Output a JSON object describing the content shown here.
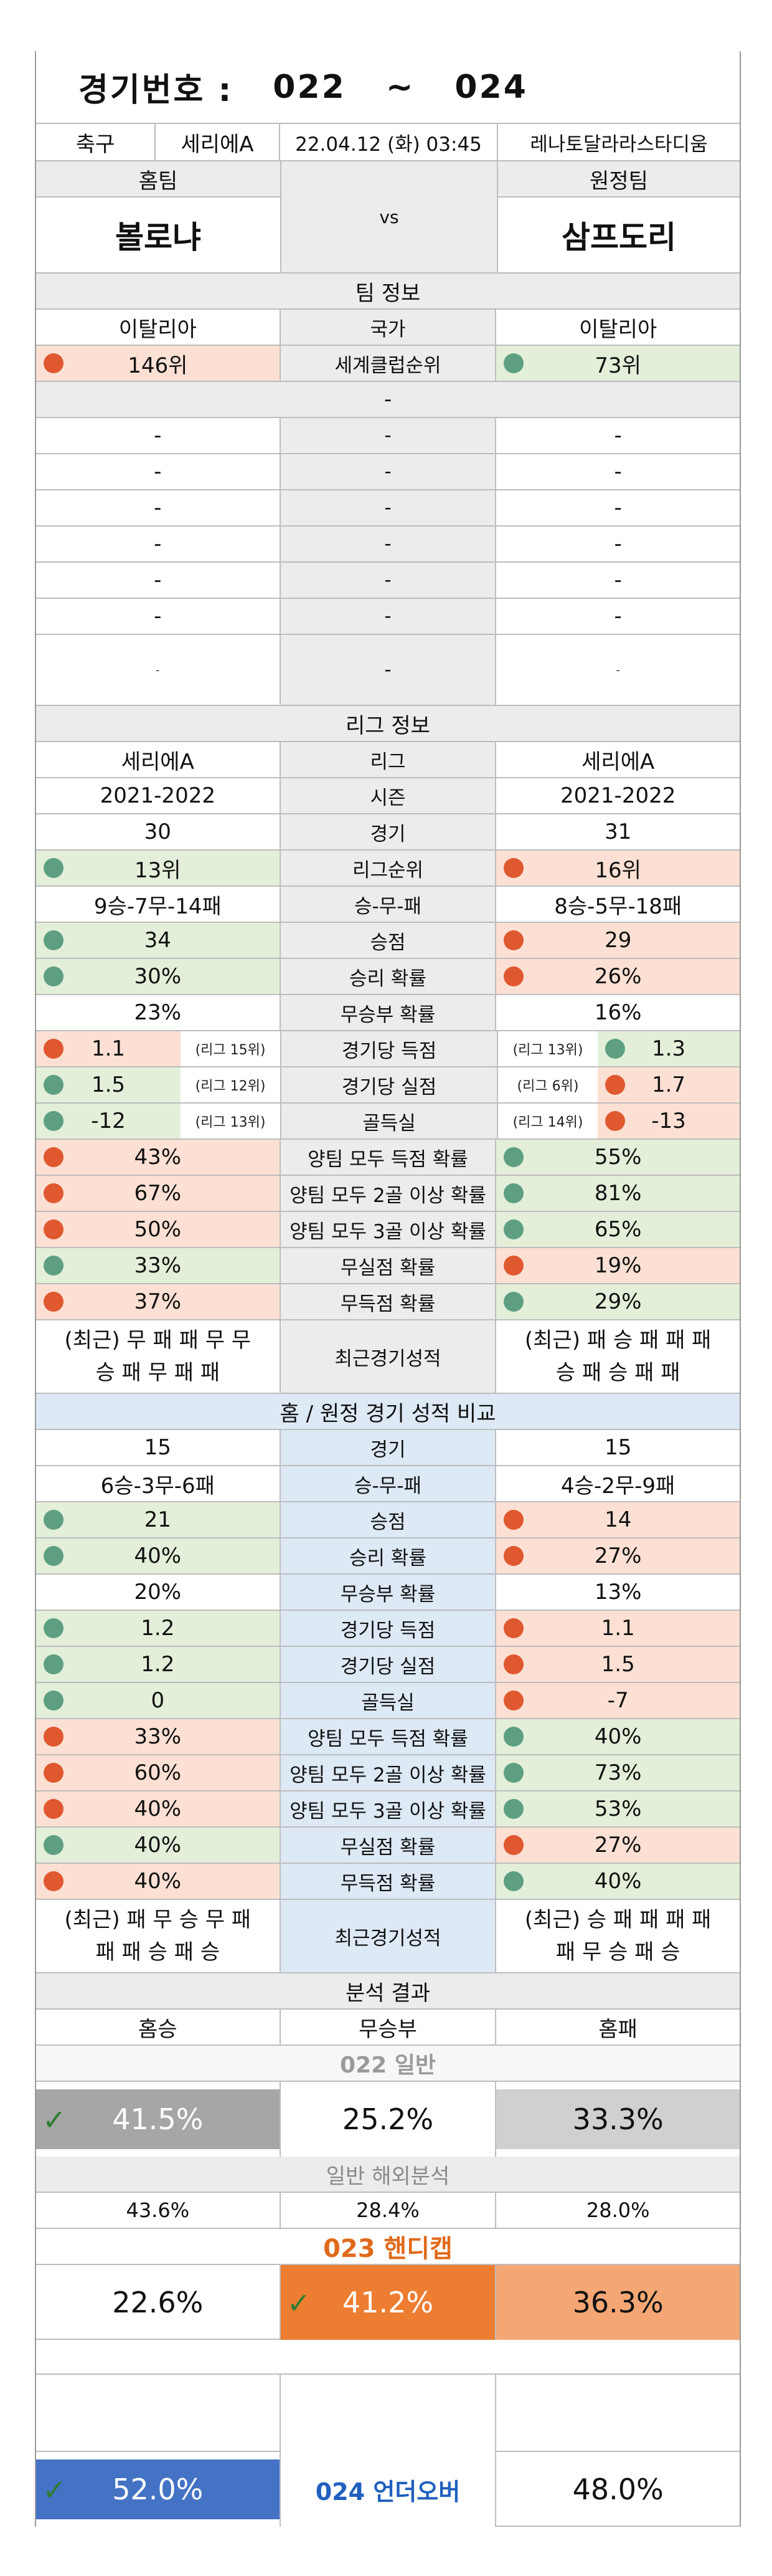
{
  "header": {
    "label": "경기번호 :",
    "from": "022",
    "tilde": "~",
    "to": "024"
  },
  "match": {
    "sport": "축구",
    "league": "세리에A",
    "datetime": "22.04.12 (화) 03:45",
    "stadium": "레나토달라라스타디움"
  },
  "teams": {
    "home_label": "홈팀",
    "away_label": "원정팀",
    "home": "볼로냐",
    "vs": "vs",
    "away": "삼프도리"
  },
  "team_info": {
    "title": "팀 정보",
    "country_home": "이탈리아",
    "country_label": "국가",
    "country_away": "이탈리아",
    "rank_home": "146위",
    "rank_label": "세계클럽순위",
    "rank_away": "73위",
    "blank_row": "-",
    "dash": "-"
  },
  "league_info": {
    "title": "리그 정보",
    "rows": [
      {
        "home": "세리에A",
        "label": "리그",
        "away": "세리에A",
        "hc": "",
        "ac": ""
      },
      {
        "home": "2021-2022",
        "label": "시즌",
        "away": "2021-2022",
        "hc": "",
        "ac": ""
      },
      {
        "home": "30",
        "label": "경기",
        "away": "31",
        "hc": "",
        "ac": ""
      },
      {
        "home": "13위",
        "label": "리그순위",
        "away": "16위",
        "hc": "up",
        "ac": "dn"
      },
      {
        "home": "9승-7무-14패",
        "label": "승-무-패",
        "away": "8승-5무-18패",
        "hc": "",
        "ac": ""
      },
      {
        "home": "34",
        "label": "승점",
        "away": "29",
        "hc": "up",
        "ac": "dn"
      },
      {
        "home": "30%",
        "label": "승리 확률",
        "away": "26%",
        "hc": "up",
        "ac": "dn"
      },
      {
        "home": "23%",
        "label": "무승부 확률",
        "away": "16%",
        "hc": "",
        "ac": ""
      }
    ],
    "ranked_rows": [
      {
        "home": "1.1",
        "home_rank": "(리그 15위)",
        "label": "경기당 득점",
        "away_rank": "(리그 13위)",
        "away": "1.3",
        "hc": "dn",
        "ac": "up"
      },
      {
        "home": "1.5",
        "home_rank": "(리그 12위)",
        "label": "경기당 실점",
        "away_rank": "(리그 6위)",
        "away": "1.7",
        "hc": "up",
        "ac": "dn"
      },
      {
        "home": "-12",
        "home_rank": "(리그 13위)",
        "label": "골득실",
        "away_rank": "(리그 14위)",
        "away": "-13",
        "hc": "up",
        "ac": "dn"
      }
    ],
    "prob_rows": [
      {
        "home": "43%",
        "label": "양팀 모두 득점 확률",
        "away": "55%",
        "hc": "dn",
        "ac": "up"
      },
      {
        "home": "67%",
        "label": "양팀 모두 2골 이상 확률",
        "away": "81%",
        "hc": "dn",
        "ac": "up"
      },
      {
        "home": "50%",
        "label": "양팀 모두 3골 이상 확률",
        "away": "65%",
        "hc": "dn",
        "ac": "up"
      },
      {
        "home": "33%",
        "label": "무실점 확률",
        "away": "19%",
        "hc": "up",
        "ac": "dn"
      },
      {
        "home": "37%",
        "label": "무득점 확률",
        "away": "29%",
        "hc": "dn",
        "ac": "up"
      }
    ],
    "recent_home": "(최근) 무 패 패 무 무\n승 패 무 패 패",
    "recent_label": "최근경기성적",
    "recent_away": "(최근) 패 승 패 패 패\n승 패 승 패 패"
  },
  "compare": {
    "title": "홈 / 원정 경기 성적 비교",
    "rows": [
      {
        "home": "15",
        "label": "경기",
        "away": "15",
        "hc": "",
        "ac": ""
      },
      {
        "home": "6승-3무-6패",
        "label": "승-무-패",
        "away": "4승-2무-9패",
        "hc": "",
        "ac": ""
      },
      {
        "home": "21",
        "label": "승점",
        "away": "14",
        "hc": "up",
        "ac": "dn"
      },
      {
        "home": "40%",
        "label": "승리 확률",
        "away": "27%",
        "hc": "up",
        "ac": "dn"
      },
      {
        "home": "20%",
        "label": "무승부 확률",
        "away": "13%",
        "hc": "",
        "ac": ""
      },
      {
        "home": "1.2",
        "label": "경기당 득점",
        "away": "1.1",
        "hc": "up",
        "ac": "dn"
      },
      {
        "home": "1.2",
        "label": "경기당 실점",
        "away": "1.5",
        "hc": "up",
        "ac": "dn"
      },
      {
        "home": "0",
        "label": "골득실",
        "away": "-7",
        "hc": "up",
        "ac": "dn"
      },
      {
        "home": "33%",
        "label": "양팀 모두 득점 확률",
        "away": "40%",
        "hc": "dn",
        "ac": "up"
      },
      {
        "home": "60%",
        "label": "양팀 모두 2골 이상 확률",
        "away": "73%",
        "hc": "dn",
        "ac": "up"
      },
      {
        "home": "40%",
        "label": "양팀 모두 3골 이상 확률",
        "away": "53%",
        "hc": "dn",
        "ac": "up"
      },
      {
        "home": "40%",
        "label": "무실점 확률",
        "away": "27%",
        "hc": "up",
        "ac": "dn"
      },
      {
        "home": "40%",
        "label": "무득점 확률",
        "away": "40%",
        "hc": "dn",
        "ac": "up"
      }
    ],
    "recent_home": "(최근) 패 무 승 무 패\n패 패 승 패 승",
    "recent_label": "최근경기성적",
    "recent_away": "(최근) 승 패 패 패 패\n패 무 승 패 승"
  },
  "analysis": {
    "title": "분석 결과",
    "home_win": "홈승",
    "draw": "무승부",
    "home_loss": "홈패",
    "general_title": "022 일반",
    "general": {
      "win": "41.5%",
      "draw": "25.2%",
      "loss": "33.3%"
    },
    "overseas_title": "일반 해외분석",
    "overseas": {
      "win": "43.6%",
      "draw": "28.4%",
      "loss": "28.0%"
    },
    "handicap_title": "023 핸디캡",
    "handicap": {
      "win": "22.6%",
      "draw": "41.2%",
      "loss": "36.3%"
    },
    "underover": {
      "under": "52.0%",
      "label": "024 언더오버",
      "over": "48.0%"
    }
  },
  "colors": {
    "up": "#5e9f82",
    "down": "#e0582f",
    "pink": "#fbe0d3",
    "green": "#e3efd9",
    "blue_section": "#dde9f5",
    "orange": "#ed7d31",
    "light_orange": "#f4a775",
    "blue": "#4472c4",
    "gray_dark": "#a6a6a6",
    "gray_light": "#d0d0d0"
  },
  "icons": {
    "dot_up": "green-circle-icon",
    "dot_down": "red-circle-icon",
    "check": "checkmark-icon"
  }
}
